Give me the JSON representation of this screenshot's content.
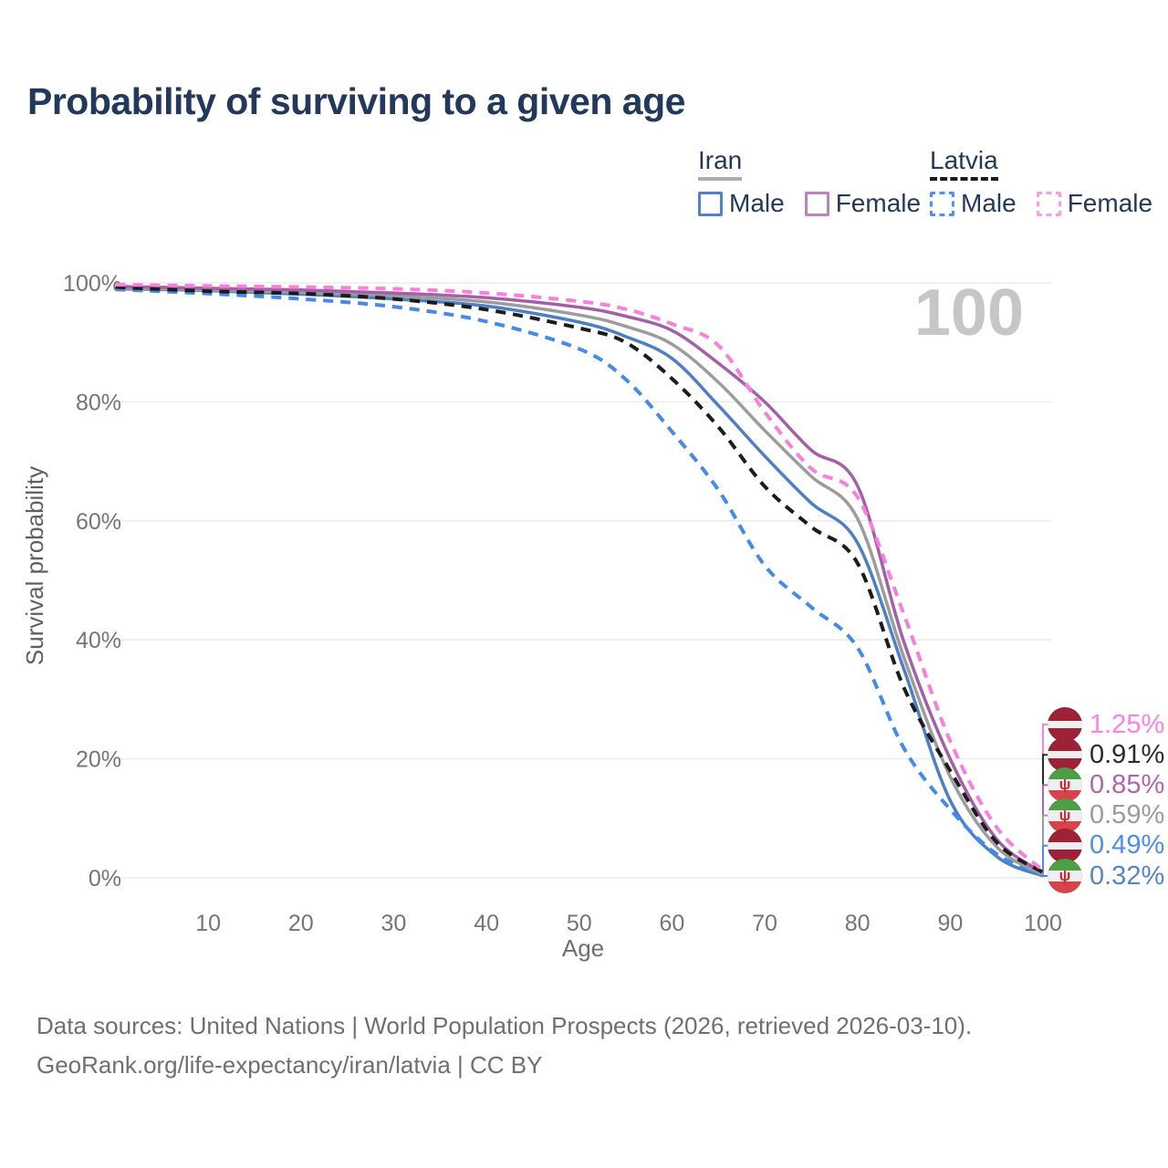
{
  "title": "Probability of surviving to a given age",
  "watermark_age": "100",
  "legend": {
    "groups": [
      {
        "name": "Iran",
        "underline_style": "solid",
        "underline_color": "#ACACAC",
        "items": [
          {
            "label": "Male",
            "color": "#5083C4",
            "dashed": false
          },
          {
            "label": "Female",
            "color": "#C181BD",
            "dashed": false
          }
        ]
      },
      {
        "name": "Latvia",
        "underline_style": "dashed",
        "underline_color": "#1B1B1B",
        "items": [
          {
            "label": "Male",
            "color": "#4D8FF2",
            "dashed": true
          },
          {
            "label": "Female",
            "color": "#FF9BE2",
            "dashed": true
          }
        ]
      }
    ]
  },
  "y_axis": {
    "label": "Survival probability",
    "ticks": [
      "0%",
      "20%",
      "40%",
      "60%",
      "80%",
      "100%"
    ],
    "tick_values": [
      0,
      20,
      40,
      60,
      80,
      100
    ]
  },
  "x_axis": {
    "label": "Age",
    "ticks": [
      "10",
      "20",
      "30",
      "40",
      "50",
      "60",
      "70",
      "80",
      "90",
      "100"
    ]
  },
  "chart_data": {
    "type": "line",
    "title": "Probability of surviving to a given age",
    "xlabel": "Age",
    "ylabel": "Survival probability",
    "xlim": [
      0,
      100
    ],
    "ylim": [
      0,
      100
    ],
    "grid": true,
    "legend_position": "top-right",
    "hover_age": 100,
    "x_ages": [
      0,
      10,
      20,
      30,
      40,
      50,
      55,
      60,
      65,
      70,
      75,
      80,
      85,
      90,
      95,
      100
    ],
    "series": [
      {
        "name": "Latvia Female",
        "country": "Latvia",
        "sex": "Female",
        "color": "#FB7EDD",
        "label_color": "#FF80DF",
        "dashed": true,
        "flag": "latvia",
        "end_label": "1.25%",
        "values": [
          99.7,
          99.5,
          99.3,
          99.0,
          98.3,
          96.9,
          95.6,
          93.1,
          89.5,
          78.3,
          68.8,
          64.0,
          44.3,
          23.0,
          8.5,
          1.25
        ]
      },
      {
        "name": "Latvia",
        "country": "Latvia",
        "sex": "Both",
        "color": "#1C1C1C",
        "label_color": "#2B2B2B",
        "dashed": true,
        "flag": "latvia",
        "end_label": "0.91%",
        "values": [
          99.3,
          98.6,
          98.2,
          97.3,
          95.5,
          92.4,
          90.0,
          83.9,
          75.8,
          65.8,
          59.0,
          52.9,
          32.0,
          18.0,
          6.0,
          0.91
        ]
      },
      {
        "name": "Iran Female",
        "country": "Iran",
        "sex": "Female",
        "color": "#A55EA8",
        "label_color": "#B263AE",
        "dashed": false,
        "flag": "iran",
        "end_label": "0.85%",
        "values": [
          99.4,
          99.1,
          98.8,
          98.3,
          97.5,
          95.9,
          94.4,
          92.0,
          86.5,
          80.0,
          71.9,
          65.9,
          39.7,
          20.0,
          6.5,
          0.85
        ]
      },
      {
        "name": "Iran",
        "country": "Iran",
        "sex": "Both",
        "color": "#9C9C9C",
        "label_color": "#9A9A9A",
        "dashed": false,
        "flag": "iran",
        "end_label": "0.59%",
        "values": [
          99.2,
          98.8,
          98.4,
          97.8,
          96.8,
          94.6,
          92.7,
          89.7,
          83.3,
          75.2,
          67.5,
          60.4,
          37.1,
          17.0,
          5.2,
          0.59
        ]
      },
      {
        "name": "Latvia Male",
        "country": "Latvia",
        "sex": "Male",
        "color": "#4489EE",
        "label_color": "#4A8CF0",
        "dashed": true,
        "flag": "latvia",
        "end_label": "0.49%",
        "values": [
          98.9,
          98.2,
          97.3,
          96.0,
          93.5,
          88.9,
          83.8,
          75.0,
          65.2,
          52.5,
          45.5,
          38.7,
          21.8,
          11.5,
          4.0,
          0.49
        ]
      },
      {
        "name": "Iran Male",
        "country": "Iran",
        "sex": "Male",
        "color": "#4C7FC4",
        "label_color": "#5585C9",
        "dashed": false,
        "flag": "iran",
        "end_label": "0.32%",
        "values": [
          99.0,
          98.7,
          98.1,
          97.3,
          96.1,
          93.4,
          91.0,
          87.3,
          79.4,
          70.9,
          63.0,
          56.3,
          35.1,
          13.0,
          3.6,
          0.32
        ]
      }
    ]
  },
  "footer": {
    "line1": "Data sources: United Nations | World Population Prospects (2026, retrieved 2026-03-10).",
    "line2": "GeoRank.org/life-expectancy/iran/latvia | CC BY"
  },
  "colors": {
    "title": "#22395C",
    "axis_text": "#757575",
    "axis_title": "#5F5F5F",
    "gridline": "#EBEBEB",
    "watermark": "#C6C6C6",
    "footer": "#6F6F6F",
    "latvia_flag_red": "#9E2137",
    "flag_white": "#EFEFEF",
    "iran_flag_green": "#4C9F44",
    "iran_flag_red": "#D8434B",
    "iran_emblem_red": "#CE2B37"
  }
}
